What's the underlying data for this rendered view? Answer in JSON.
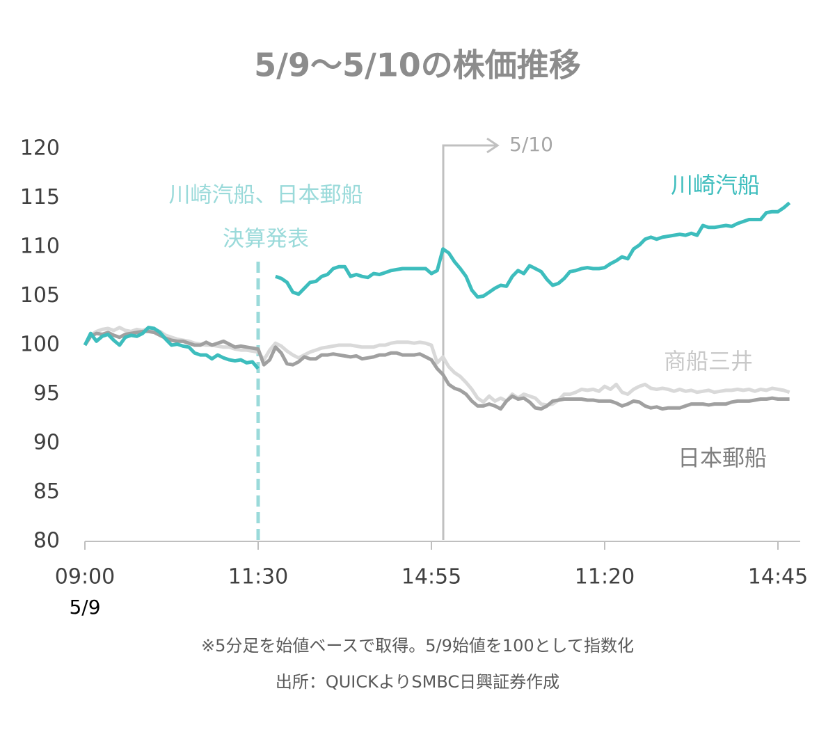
{
  "chart_data": {
    "type": "line",
    "title": "5/9～5/10の株価推移",
    "categories": [
      "09:00",
      null,
      null,
      null,
      null,
      null,
      null,
      null,
      null,
      null,
      null,
      null,
      null,
      null,
      null,
      null,
      null,
      null,
      null,
      null,
      null,
      null,
      null,
      null,
      null,
      null,
      null,
      null,
      null,
      null,
      "11:30",
      null,
      null,
      null,
      null,
      null,
      null,
      null,
      null,
      null,
      null,
      null,
      null,
      null,
      null,
      null,
      null,
      null,
      null,
      null,
      null,
      null,
      null,
      null,
      null,
      null,
      null,
      null,
      null,
      null,
      "14:55",
      null,
      null,
      null,
      null,
      null,
      null,
      null,
      null,
      null,
      null,
      null,
      null,
      null,
      null,
      null,
      null,
      null,
      null,
      null,
      null,
      null,
      null,
      null,
      null,
      null,
      null,
      null,
      null,
      null,
      "11:20",
      null,
      null,
      null,
      null,
      null,
      null,
      null,
      null,
      null,
      null,
      null,
      null,
      null,
      null,
      null,
      null,
      null,
      null,
      null,
      null,
      null,
      null,
      null,
      null,
      null,
      null,
      null,
      null,
      null,
      "14:45",
      null,
      null
    ],
    "start_date": "5/9",
    "next_day_label": "5/10",
    "annotations": [
      "川崎汽船、日本郵船",
      "決算発表"
    ],
    "notes": [
      "※5分足を始値ベースで取得。5/9始値を100として指数化",
      "出所：QUICKよりSMBC日興証券作成"
    ],
    "ylim": [
      80,
      120
    ],
    "yticks": [
      80,
      85,
      90,
      95,
      100,
      105,
      110,
      115,
      120
    ],
    "series": [
      {
        "name": "川崎汽船",
        "color": "#3dbdbd",
        "values": [
          100,
          101.2,
          100.4,
          100.9,
          101.1,
          100.5,
          100,
          100.8,
          101,
          100.9,
          101.2,
          101.8,
          101.7,
          101.3,
          100.6,
          100,
          100.1,
          99.9,
          99.8,
          99.2,
          99,
          99,
          98.6,
          99,
          98.7,
          98.5,
          98.4,
          98.5,
          98.2,
          98.3,
          97.6,
          null,
          null,
          107,
          106.8,
          106.4,
          105.4,
          105.2,
          105.8,
          106.4,
          106.5,
          107,
          107.2,
          107.8,
          108,
          108,
          107,
          107.2,
          107,
          106.9,
          107.3,
          107.2,
          107.4,
          107.6,
          107.7,
          107.8,
          107.8,
          107.8,
          107.8,
          107.8,
          107.3,
          107.6,
          109.8,
          109.4,
          108.5,
          107.8,
          107,
          105.6,
          104.9,
          105,
          105.4,
          105.8,
          106.1,
          106,
          107,
          107.6,
          107.3,
          108.1,
          107.8,
          107.5,
          106.7,
          106.1,
          106.3,
          106.8,
          107.5,
          107.6,
          107.8,
          107.9,
          107.8,
          107.8,
          107.9,
          108.3,
          108.6,
          109,
          108.8,
          109.8,
          110.2,
          110.8,
          111,
          110.8,
          111,
          111.1,
          111.2,
          111.3,
          111.2,
          111.4,
          111.2,
          112.2,
          112,
          112,
          112.1,
          112.2,
          112.1,
          112.4,
          112.6,
          112.8,
          112.8,
          112.8,
          113.5,
          113.6,
          113.6,
          114,
          114.5
        ]
      },
      {
        "name": "商船三井",
        "color": "#d9d9d9",
        "values": [
          100,
          101,
          101.4,
          101.6,
          101.7,
          101.5,
          101.8,
          101.5,
          101.4,
          101.6,
          101.5,
          101.7,
          101.6,
          101.4,
          101,
          100.8,
          100.6,
          100.5,
          100.4,
          100.2,
          100.1,
          100,
          100,
          99.9,
          99.8,
          99.8,
          99.6,
          99.5,
          99.5,
          99.4,
          99.3,
          98.5,
          99.5,
          100.2,
          99.9,
          99.4,
          99,
          98.7,
          99,
          99.3,
          99.5,
          99.7,
          99.8,
          99.9,
          100,
          100,
          100,
          99.9,
          99.8,
          99.8,
          99.8,
          100,
          100,
          100.2,
          100.3,
          100.3,
          100.3,
          100.2,
          100.3,
          100.2,
          100,
          98.2,
          98.8,
          97.8,
          97.2,
          96.8,
          96.2,
          95.5,
          94.6,
          94.2,
          94.8,
          94.3,
          94.6,
          94.3,
          95,
          94.6,
          95,
          94.8,
          94.6,
          94,
          93.9,
          94,
          94.4,
          95,
          95,
          95.2,
          95.5,
          95.4,
          95.5,
          95.3,
          95.8,
          95.5,
          96,
          95.2,
          95,
          95.5,
          95.8,
          96,
          95.6,
          95.5,
          95.6,
          95.5,
          95.3,
          95.5,
          95.3,
          95.4,
          95.2,
          95.3,
          95.4,
          95.2,
          95.3,
          95.4,
          95.4,
          95.5,
          95.4,
          95.5,
          95.3,
          95.5,
          95.4,
          95.6,
          95.5,
          95.4,
          95.2
        ]
      },
      {
        "name": "日本郵船",
        "color": "#a0a0a0",
        "values": [
          100,
          100.9,
          101.2,
          101.1,
          101.3,
          101,
          100.8,
          101.1,
          101.2,
          101.3,
          101.4,
          101.4,
          101.3,
          101,
          100.7,
          100.5,
          100.4,
          100.4,
          100.2,
          100,
          100,
          100.3,
          100,
          100.2,
          100.4,
          100.1,
          99.8,
          99.9,
          99.8,
          99.7,
          99.6,
          98,
          98.5,
          99.8,
          99.2,
          98.1,
          98,
          98.3,
          98.8,
          98.6,
          98.6,
          99,
          99,
          99.1,
          99,
          98.9,
          98.8,
          98.9,
          98.6,
          98.7,
          98.8,
          99,
          99,
          99.2,
          99.2,
          99,
          99,
          99,
          99.1,
          98.8,
          98.5,
          97.6,
          97,
          96,
          95.6,
          95.4,
          95,
          94.3,
          93.8,
          93.8,
          94,
          93.8,
          93.5,
          94.3,
          94.8,
          94.5,
          94.6,
          94.2,
          93.6,
          93.5,
          93.8,
          94.3,
          94.4,
          94.5,
          94.5,
          94.5,
          94.5,
          94.4,
          94.4,
          94.3,
          94.3,
          94.3,
          94.1,
          93.8,
          94,
          94.3,
          94.2,
          93.8,
          93.6,
          93.7,
          93.5,
          93.6,
          93.6,
          93.6,
          93.8,
          94,
          94,
          94,
          93.9,
          94,
          94,
          94,
          94.2,
          94.3,
          94.3,
          94.3,
          94.4,
          94.5,
          94.5,
          94.6,
          94.5,
          94.5,
          94.5
        ]
      }
    ]
  }
}
